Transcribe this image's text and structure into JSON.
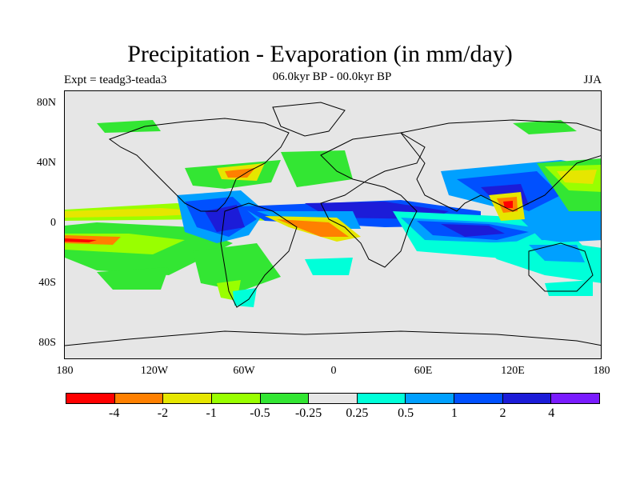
{
  "title": "Precipitation - Evaporation (in mm/day)",
  "experiment": "Expt = teadg3-teada3",
  "period": "06.0kyr BP - 00.0kyr BP",
  "season": "JJA",
  "lat_labels": [
    "80N",
    "40N",
    "0",
    "40S",
    "80S"
  ],
  "lon_labels": [
    "180",
    "120W",
    "60W",
    "0",
    "60E",
    "120E",
    "180"
  ],
  "colorbar": {
    "colors": [
      "#ff0000",
      "#ff8000",
      "#e6e600",
      "#99ff00",
      "#33e633",
      "#e6e6e6",
      "#00ffd9",
      "#00a0ff",
      "#0050ff",
      "#1c1cd8",
      "#7a1cff"
    ],
    "labels": [
      "-4",
      "-2",
      "-1",
      "-0.5",
      "-0.25",
      "0.25",
      "0.5",
      "1",
      "2",
      "4"
    ]
  }
}
